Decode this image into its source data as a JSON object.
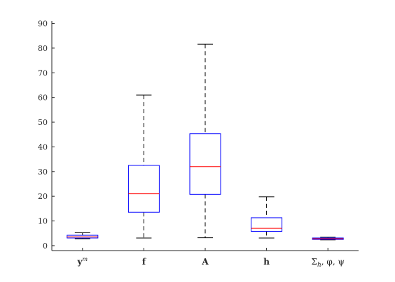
{
  "chart_data": {
    "type": "boxplot",
    "title": "",
    "xlabel": "",
    "ylabel": "",
    "ylim": [
      -2,
      91
    ],
    "yticks": [
      0,
      10,
      20,
      30,
      40,
      50,
      60,
      70,
      80,
      90
    ],
    "grid": false,
    "categories": [
      {
        "label": "y",
        "sup": "m",
        "style": "bold"
      },
      {
        "label": "f",
        "sup": "",
        "style": "bold"
      },
      {
        "label": "A",
        "sup": "",
        "style": "bold"
      },
      {
        "label": "h",
        "sup": "",
        "style": "bold"
      },
      {
        "label": "Σh, φ, ψ",
        "sup": "",
        "style": "normal",
        "sub": "h"
      }
    ],
    "boxes": [
      {
        "whisker_low": 2.8,
        "q1": 3.1,
        "median": 3.6,
        "q3": 4.2,
        "whisker_high": 5.2
      },
      {
        "whisker_low": 3.1,
        "q1": 13.5,
        "median": 21.0,
        "q3": 32.5,
        "whisker_high": 61.0
      },
      {
        "whisker_low": 3.2,
        "q1": 20.8,
        "median": 32.0,
        "q3": 45.3,
        "whisker_high": 81.6
      },
      {
        "whisker_low": 3.1,
        "q1": 5.8,
        "median": 7.0,
        "q3": 11.3,
        "whisker_high": 19.8
      },
      {
        "whisker_low": 2.3,
        "q1": 2.5,
        "median": 2.8,
        "q3": 3.1,
        "whisker_high": 3.4
      }
    ],
    "colors": {
      "axis": "#262626",
      "box": "#0000ff",
      "median": "#ff0000",
      "whisker": "#000000"
    }
  }
}
